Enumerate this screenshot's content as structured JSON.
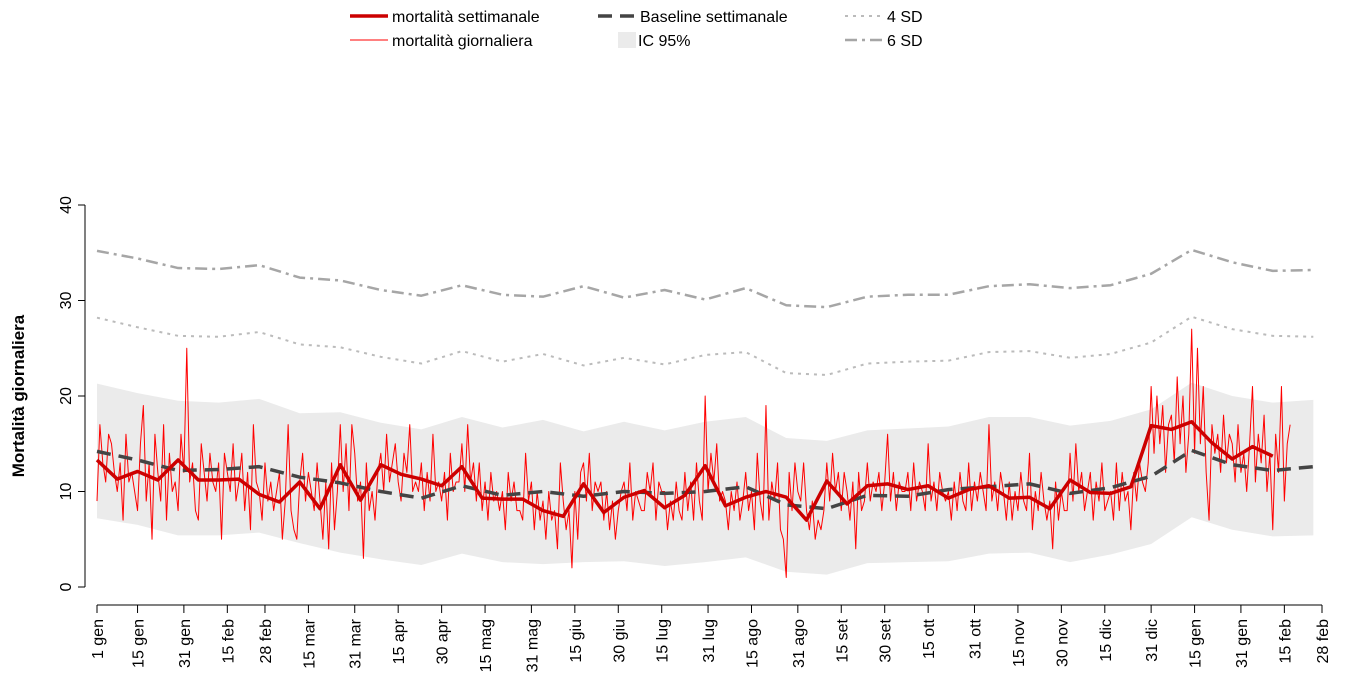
{
  "chart_data": {
    "type": "line",
    "y_label": "Mortalità giornaliera",
    "xlim": [
      0,
      423
    ],
    "ylim": [
      0,
      40
    ],
    "yticks": [
      0,
      10,
      20,
      30,
      40
    ],
    "xticks": [
      {
        "value": 0,
        "label": "1 gen"
      },
      {
        "value": 14,
        "label": "15 gen"
      },
      {
        "value": 30,
        "label": "31 gen"
      },
      {
        "value": 45,
        "label": "15 feb"
      },
      {
        "value": 58,
        "label": "28 feb"
      },
      {
        "value": 73,
        "label": "15 mar"
      },
      {
        "value": 89,
        "label": "31 mar"
      },
      {
        "value": 104,
        "label": "15 apr"
      },
      {
        "value": 119,
        "label": "30 apr"
      },
      {
        "value": 134,
        "label": "15 mag"
      },
      {
        "value": 150,
        "label": "31 mag"
      },
      {
        "value": 165,
        "label": "15 giu"
      },
      {
        "value": 180,
        "label": "30 giu"
      },
      {
        "value": 195,
        "label": "15 lug"
      },
      {
        "value": 211,
        "label": "31 lug"
      },
      {
        "value": 226,
        "label": "15 ago"
      },
      {
        "value": 242,
        "label": "31 ago"
      },
      {
        "value": 257,
        "label": "15 set"
      },
      {
        "value": 272,
        "label": "30 set"
      },
      {
        "value": 287,
        "label": "15 ott"
      },
      {
        "value": 303,
        "label": "31 ott"
      },
      {
        "value": 318,
        "label": "15 nov"
      },
      {
        "value": 333,
        "label": "30 nov"
      },
      {
        "value": 348,
        "label": "15 dic"
      },
      {
        "value": 364,
        "label": "31 dic"
      },
      {
        "value": 379,
        "label": "15 gen"
      },
      {
        "value": 395,
        "label": "31 gen"
      },
      {
        "value": 410,
        "label": "15 feb"
      },
      {
        "value": 423,
        "label": "28 feb"
      }
    ],
    "series": [
      {
        "name": "mortalità settimanale",
        "color": "#cc0000",
        "width": 3.5,
        "dash": "solid",
        "x": [
          0,
          7,
          14,
          21,
          28,
          35,
          42,
          49,
          56,
          63,
          70,
          77,
          84,
          91,
          98,
          105,
          112,
          119,
          126,
          133,
          140,
          147,
          154,
          161,
          168,
          175,
          182,
          189,
          196,
          203,
          210,
          217,
          224,
          231,
          238,
          245,
          252,
          259,
          266,
          273,
          280,
          287,
          294,
          301,
          308,
          315,
          322,
          329,
          336,
          343,
          350,
          357,
          364,
          371,
          378,
          385,
          392,
          399,
          406
        ],
        "values": [
          13.3,
          11.3,
          12.1,
          11.2,
          13.3,
          11.2,
          11.2,
          11.3,
          9.7,
          8.9,
          11.0,
          8.2,
          12.8,
          9.1,
          12.8,
          11.8,
          11.3,
          10.6,
          12.6,
          9.3,
          9.2,
          9.2,
          8.0,
          7.4,
          10.8,
          7.8,
          9.4,
          10.1,
          8.3,
          9.6,
          12.7,
          8.5,
          9.4,
          10.0,
          9.4,
          7.0,
          11.1,
          8.7,
          10.6,
          10.8,
          10.2,
          10.6,
          9.3,
          10.2,
          10.6,
          9.3,
          9.4,
          8.2,
          11.2,
          9.9,
          9.8,
          10.5,
          16.9,
          16.5,
          17.3,
          15.1,
          13.4,
          14.7,
          13.7
        ]
      },
      {
        "name": "mortalità giornaliera",
        "color": "#ff0000",
        "width": 1,
        "dash": "solid",
        "values": [
          9,
          17,
          13,
          11,
          16,
          15,
          12,
          10,
          13,
          7,
          16,
          11,
          12,
          10,
          8,
          15,
          19,
          9,
          13,
          5,
          16,
          12,
          9,
          17,
          7,
          14,
          10,
          11,
          8,
          16,
          12,
          25,
          11,
          13,
          8,
          7,
          15,
          12,
          9,
          14,
          11,
          10,
          13,
          5,
          14,
          12,
          10,
          15,
          9,
          11,
          14,
          8,
          12,
          6,
          17,
          11,
          10,
          7,
          13,
          9,
          11,
          8,
          10,
          12,
          5,
          9,
          17,
          8,
          6,
          5,
          11,
          14,
          9,
          12,
          10,
          8,
          13,
          9,
          5,
          11,
          4,
          13,
          6,
          10,
          17,
          10,
          15,
          8,
          17,
          14,
          9,
          11,
          3,
          13,
          8,
          10,
          7,
          12,
          14,
          10,
          16,
          11,
          13,
          15,
          11,
          9,
          14,
          12,
          17,
          10,
          11,
          10,
          13,
          8,
          12,
          9,
          16,
          10,
          11,
          9,
          12,
          7,
          14,
          10,
          11,
          11,
          15,
          10,
          17,
          11,
          13,
          9,
          13,
          8,
          11,
          7,
          12,
          9,
          10,
          8,
          10,
          6,
          12,
          9,
          11,
          8,
          8,
          7,
          14,
          9,
          11,
          6,
          10,
          7,
          9,
          5,
          10,
          7,
          8,
          4,
          13,
          9,
          6,
          8,
          2,
          10,
          5,
          12,
          13,
          9,
          14,
          8,
          11,
          10,
          11,
          7,
          10,
          6,
          9,
          5,
          8,
          10,
          11,
          8,
          13,
          7,
          10,
          9,
          8,
          8,
          12,
          10,
          13,
          7,
          11,
          10,
          10,
          6,
          9,
          7,
          11,
          8,
          7,
          12,
          8,
          11,
          7,
          13,
          9,
          7,
          20,
          10,
          14,
          11,
          15,
          9,
          10,
          9,
          6,
          10,
          8,
          11,
          7,
          9,
          12,
          8,
          10,
          6,
          14,
          9,
          7,
          19,
          7,
          11,
          9,
          13,
          6,
          5,
          1,
          12,
          8,
          13,
          10,
          9,
          13,
          8,
          6,
          9,
          5,
          7,
          6,
          8,
          13,
          9,
          14,
          10,
          12,
          8,
          12,
          10,
          7,
          11,
          4,
          12,
          8,
          9,
          13,
          9,
          11,
          10,
          12,
          8,
          11,
          16,
          9,
          12,
          8,
          11,
          10,
          10,
          12,
          8,
          13,
          9,
          11,
          10,
          8,
          15,
          9,
          11,
          8,
          12,
          10,
          9,
          10,
          7,
          11,
          8,
          12,
          9,
          8,
          13,
          8,
          11,
          9,
          12,
          10,
          8,
          17,
          9,
          11,
          8,
          12,
          10,
          7,
          11,
          7,
          10,
          8,
          12,
          9,
          8,
          14,
          6,
          10,
          8,
          12,
          9,
          7,
          9,
          4,
          11,
          7,
          10,
          8,
          8,
          14,
          9,
          15,
          10,
          12,
          8,
          10,
          12,
          7,
          11,
          9,
          13,
          8,
          9,
          10,
          7,
          13,
          8,
          12,
          9,
          10,
          6,
          12,
          9,
          13,
          11,
          10,
          13,
          21,
          14,
          20,
          15,
          19,
          12,
          17,
          18,
          13,
          22,
          15,
          20,
          12,
          16,
          27,
          14,
          25,
          15,
          21,
          12,
          7,
          17,
          14,
          16,
          12,
          18,
          13,
          16,
          15,
          11,
          17,
          12,
          14,
          10,
          15,
          21,
          11,
          16,
          13,
          18,
          10,
          14,
          6,
          16,
          12,
          21,
          9,
          15,
          17
        ]
      },
      {
        "name": "Baseline settimanale",
        "color": "#444444",
        "width": 3.5,
        "dash": "dashed",
        "x": [
          0,
          14,
          28,
          42,
          56,
          70,
          84,
          98,
          112,
          126,
          140,
          154,
          168,
          182,
          196,
          210,
          224,
          238,
          252,
          266,
          280,
          294,
          308,
          322,
          336,
          350,
          364,
          378,
          392,
          406,
          420
        ],
        "values": [
          14.2,
          13.3,
          12.2,
          12.3,
          12.6,
          11.5,
          10.9,
          10.0,
          9.3,
          10.6,
          9.6,
          10.0,
          9.5,
          10.0,
          9.8,
          10.0,
          10.5,
          8.6,
          8.2,
          9.6,
          9.5,
          10.2,
          10.5,
          10.8,
          9.8,
          10.4,
          11.6,
          14.3,
          12.8,
          12.2,
          12.6
        ]
      },
      {
        "name": "4 SD",
        "color": "#bbbbbb",
        "width": 2,
        "dash": "dotted",
        "x": [
          0,
          14,
          28,
          42,
          56,
          70,
          84,
          98,
          112,
          126,
          140,
          154,
          168,
          182,
          196,
          210,
          224,
          238,
          252,
          266,
          280,
          294,
          308,
          322,
          336,
          350,
          364,
          378,
          392,
          406,
          420
        ],
        "values": [
          28.2,
          27.2,
          26.3,
          26.2,
          26.7,
          25.4,
          25.1,
          24.1,
          23.4,
          24.7,
          23.6,
          24.4,
          23.2,
          24.0,
          23.3,
          24.3,
          24.6,
          22.4,
          22.2,
          23.4,
          23.6,
          23.7,
          24.6,
          24.7,
          24.0,
          24.4,
          25.6,
          28.3,
          27.0,
          26.3,
          26.2
        ]
      },
      {
        "name": "6 SD",
        "color": "#a6a6a6",
        "width": 2.5,
        "dash": "dashdot",
        "x": [
          0,
          14,
          28,
          42,
          56,
          70,
          84,
          98,
          112,
          126,
          140,
          154,
          168,
          182,
          196,
          210,
          224,
          238,
          252,
          266,
          280,
          294,
          308,
          322,
          336,
          350,
          364,
          378,
          392,
          406,
          420
        ],
        "values": [
          35.2,
          34.4,
          33.4,
          33.3,
          33.7,
          32.4,
          32.1,
          31.1,
          30.5,
          31.6,
          30.6,
          30.4,
          31.5,
          30.3,
          31.1,
          30.1,
          31.3,
          29.5,
          29.3,
          30.4,
          30.6,
          30.6,
          31.5,
          31.7,
          31.3,
          31.6,
          32.8,
          35.3,
          34.0,
          33.1,
          33.2
        ]
      }
    ],
    "band": {
      "name": "IC 95%",
      "color": "#ebebeb",
      "x": [
        0,
        14,
        28,
        42,
        56,
        70,
        84,
        98,
        112,
        126,
        140,
        154,
        168,
        182,
        196,
        210,
        224,
        238,
        252,
        266,
        280,
        294,
        308,
        322,
        336,
        350,
        364,
        378,
        392,
        406,
        420
      ],
      "lower": [
        7.2,
        6.5,
        5.4,
        5.4,
        5.7,
        4.6,
        3.6,
        2.9,
        2.3,
        3.5,
        2.6,
        2.4,
        2.6,
        2.7,
        2.2,
        2.6,
        3.1,
        1.6,
        1.3,
        2.5,
        2.6,
        2.7,
        3.5,
        3.6,
        2.6,
        3.4,
        4.5,
        7.3,
        6.0,
        5.3,
        5.4
      ],
      "upper": [
        21.3,
        20.3,
        19.5,
        19.3,
        19.7,
        18.2,
        18.3,
        17.2,
        16.5,
        17.8,
        16.7,
        17.5,
        16.3,
        17.3,
        16.4,
        17.3,
        17.8,
        15.6,
        15.3,
        16.4,
        16.6,
        16.8,
        17.8,
        17.8,
        16.9,
        17.4,
        18.6,
        21.4,
        20.0,
        19.3,
        19.6
      ]
    }
  }
}
